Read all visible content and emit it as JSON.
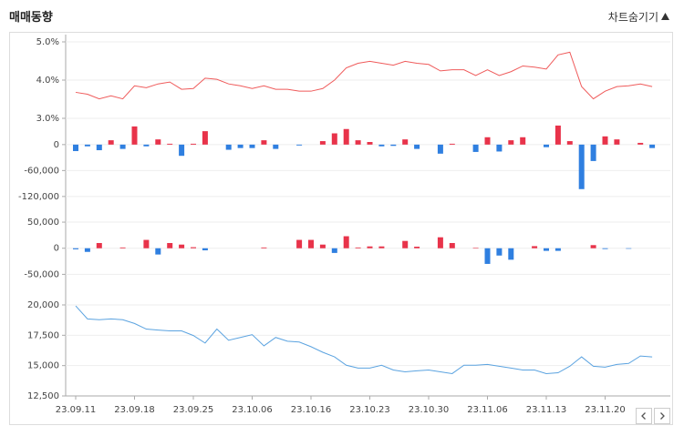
{
  "header": {
    "title": "매매동향",
    "toggle": "차트숨기기"
  },
  "chart_data": [
    {
      "type": "line",
      "color": "#ef5b5b",
      "ylim": [
        3,
        5
      ],
      "yticks": [
        {
          "value": 5,
          "label": "5.0%"
        },
        {
          "value": 4,
          "label": "4.0%"
        },
        {
          "value": 3,
          "label": "3.0%"
        }
      ],
      "values": [
        3.68,
        3.63,
        3.51,
        3.59,
        3.51,
        3.85,
        3.8,
        3.9,
        3.95,
        3.76,
        3.78,
        4.05,
        4.02,
        3.9,
        3.85,
        3.78,
        3.85,
        3.76,
        3.76,
        3.71,
        3.71,
        3.78,
        4.0,
        4.32,
        4.44,
        4.49,
        4.44,
        4.39,
        4.49,
        4.44,
        4.41,
        4.24,
        4.27,
        4.27,
        4.12,
        4.27,
        4.12,
        4.22,
        4.37,
        4.34,
        4.29,
        4.66,
        4.73,
        3.83,
        3.51,
        3.71,
        3.83,
        3.85,
        3.9,
        3.83
      ]
    },
    {
      "type": "bar",
      "color_up": "#e8334a",
      "color_down": "#2f7fe0",
      "ylim": [
        -130000,
        46000
      ],
      "yticks": [
        0,
        {
          "value": -60000,
          "label": "-60,000"
        },
        {
          "value": -120000,
          "label": "-120,000"
        }
      ],
      "values": [
        -15000,
        -4000,
        -13000,
        10000,
        -10000,
        42000,
        -4000,
        12000,
        2000,
        -26000,
        2000,
        31000,
        0,
        -12000,
        -8000,
        -8000,
        10000,
        -10000,
        0,
        -2000,
        0,
        8000,
        26000,
        36000,
        10000,
        6000,
        -4000,
        -3000,
        12000,
        -10000,
        0,
        -21000,
        2000,
        0,
        -17000,
        17000,
        -16000,
        10000,
        17000,
        0,
        -6000,
        44000,
        8000,
        -103000,
        -38000,
        19000,
        12000,
        0,
        4000,
        -8000
      ]
    },
    {
      "type": "bar",
      "color_up": "#e8334a",
      "color_down": "#2f7fe0",
      "ylim": [
        -65000,
        78000
      ],
      "yticks": [
        {
          "value": 50000,
          "label": "50,000"
        },
        0,
        {
          "value": -50000,
          "label": "-50,000"
        }
      ],
      "values": [
        -2000,
        -7000,
        10000,
        0,
        1500,
        0,
        16000,
        -12000,
        10000,
        7000,
        2000,
        -4000,
        0,
        0,
        0,
        0,
        1500,
        0,
        0,
        16000,
        16000,
        7000,
        -9000,
        23000,
        1500,
        3500,
        3500,
        0,
        14000,
        3000,
        0,
        21000,
        10000,
        0,
        1000,
        -30000,
        -14000,
        -22000,
        0,
        4000,
        -5000,
        -5000,
        0,
        0,
        6000,
        -1500,
        0,
        -1000,
        0,
        0
      ]
    },
    {
      "type": "line",
      "color": "#5ba3e0",
      "ylim": [
        12500,
        21500
      ],
      "yticks": [
        {
          "value": 20000,
          "label": "20,000"
        },
        {
          "value": 17500,
          "label": "17,500"
        },
        {
          "value": 15000,
          "label": "15,000"
        },
        {
          "value": 12500,
          "label": "12,500"
        }
      ],
      "categories": [
        "23.09.11",
        null,
        null,
        null,
        null,
        "23.09.18",
        null,
        null,
        null,
        null,
        "23.09.25",
        null,
        null,
        null,
        null,
        "23.10.06",
        null,
        null,
        null,
        null,
        "23.10.16",
        null,
        null,
        null,
        null,
        "23.10.23",
        null,
        null,
        null,
        null,
        "23.10.30",
        null,
        null,
        null,
        null,
        "23.11.06",
        null,
        null,
        null,
        null,
        "23.11.13",
        null,
        null,
        null,
        null,
        "23.11.20",
        null,
        null,
        null,
        null
      ],
      "values": [
        19920,
        18850,
        18780,
        18850,
        18780,
        18470,
        18010,
        17930,
        17860,
        17860,
        17480,
        16860,
        18010,
        17090,
        17320,
        17550,
        16630,
        17320,
        17010,
        16940,
        16560,
        16100,
        15720,
        15030,
        14800,
        14800,
        15030,
        14640,
        14490,
        14570,
        14640,
        14490,
        14340,
        15030,
        15030,
        15100,
        14950,
        14800,
        14640,
        14640,
        14340,
        14410,
        14950,
        15720,
        14950,
        14870,
        15100,
        15180,
        15790,
        15720
      ]
    }
  ]
}
